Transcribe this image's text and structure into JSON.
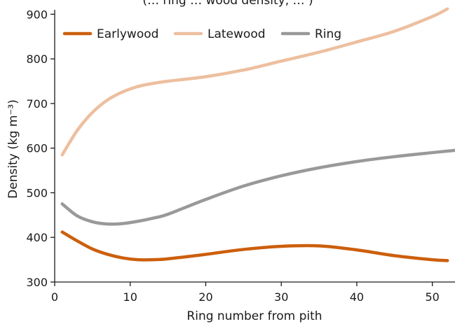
{
  "chart_data": {
    "type": "line",
    "title_fragment": "(… ring … wood density, … )",
    "xlabel": "Ring number from pith",
    "ylabel": "Density (kg m⁻³)",
    "xlim": [
      0,
      53
    ],
    "ylim": [
      300,
      910
    ],
    "xticks": [
      0,
      10,
      20,
      30,
      40,
      50
    ],
    "yticks": [
      300,
      400,
      500,
      600,
      700,
      800,
      900
    ],
    "legend_position": "top-left",
    "grid": false,
    "series": [
      {
        "name": "Earlywood",
        "color": "#cc5f0c",
        "x": [
          1,
          3,
          5,
          7,
          9,
          11,
          13,
          15,
          20,
          25,
          30,
          35,
          40,
          45,
          50,
          52
        ],
        "y": [
          412,
          392,
          374,
          362,
          354,
          350,
          350,
          352,
          362,
          373,
          380,
          381,
          372,
          359,
          350,
          348
        ]
      },
      {
        "name": "Latewood",
        "color": "#edbf9f",
        "x": [
          1,
          3,
          5,
          7,
          9,
          11,
          13,
          15,
          20,
          25,
          30,
          35,
          40,
          45,
          50,
          52
        ],
        "y": [
          585,
          640,
          680,
          708,
          726,
          738,
          745,
          750,
          760,
          775,
          795,
          815,
          838,
          862,
          895,
          912
        ]
      },
      {
        "name": "Ring",
        "color": "#999999",
        "x": [
          1,
          3,
          5,
          7,
          9,
          11,
          13,
          15,
          20,
          25,
          30,
          35,
          40,
          45,
          50,
          53
        ],
        "y": [
          475,
          448,
          435,
          430,
          431,
          436,
          443,
          452,
          485,
          515,
          538,
          556,
          570,
          581,
          590,
          595
        ]
      }
    ]
  }
}
